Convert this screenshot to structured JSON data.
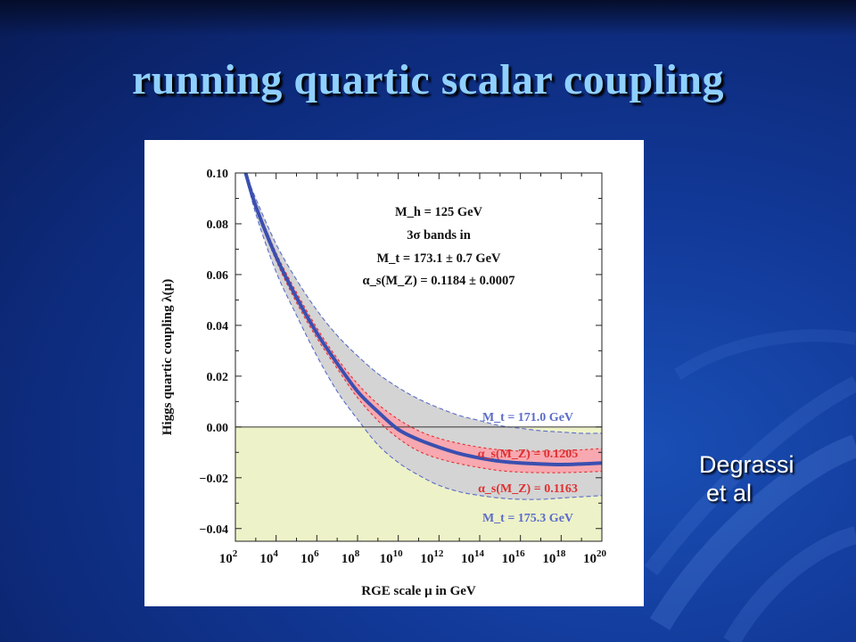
{
  "slide": {
    "title": "running quartic scalar coupling",
    "credit_line1": "Degrassi",
    "credit_line2": "et al"
  },
  "colors": {
    "central_curve": "#3a4fb0",
    "alpha_band": "#f7a8b0",
    "alpha_band_edge": "#e03030",
    "mt_band": "#d4d4d4",
    "mt_band_edge": "#5a6cc8",
    "negative_region": "#eef2c8",
    "title": "#8fd0ff"
  },
  "chart_data": {
    "type": "line",
    "xlabel": "RGE scale μ in GeV",
    "ylabel": "Higgs quartic coupling λ(μ)",
    "x_scale": "log",
    "xlim": [
      100,
      1e+20
    ],
    "ylim": [
      -0.045,
      0.1
    ],
    "x_ticks": [
      {
        "value": 100.0,
        "base": "10",
        "exp": "2"
      },
      {
        "value": 10000.0,
        "base": "10",
        "exp": "4"
      },
      {
        "value": 1000000.0,
        "base": "10",
        "exp": "6"
      },
      {
        "value": 100000000.0,
        "base": "10",
        "exp": "8"
      },
      {
        "value": 10000000000.0,
        "base": "10",
        "exp": "10"
      },
      {
        "value": 1000000000000.0,
        "base": "10",
        "exp": "12"
      },
      {
        "value": 100000000000000.0,
        "base": "10",
        "exp": "14"
      },
      {
        "value": 1e+16,
        "base": "10",
        "exp": "16"
      },
      {
        "value": 1e+18,
        "base": "10",
        "exp": "18"
      },
      {
        "value": 1e+20,
        "base": "10",
        "exp": "20"
      }
    ],
    "y_ticks": [
      {
        "value": 0.1,
        "label": "0.10"
      },
      {
        "value": 0.08,
        "label": "0.08"
      },
      {
        "value": 0.06,
        "label": "0.06"
      },
      {
        "value": 0.04,
        "label": "0.04"
      },
      {
        "value": 0.02,
        "label": "0.02"
      },
      {
        "value": 0.0,
        "label": "0.00"
      },
      {
        "value": -0.02,
        "label": "−0.02"
      },
      {
        "value": -0.04,
        "label": "−0.04"
      }
    ],
    "legend_lines": [
      "M_h = 125 GeV",
      "3σ bands in",
      "M_t = 173.1 ± 0.7 GeV",
      "α_s(M_Z) = 0.1184 ± 0.0007"
    ],
    "annotations": [
      "M_t = 171.0 GeV",
      "α_s(M_Z) = 0.1205",
      "α_s(M_Z) = 0.1163",
      "M_t = 175.3 GeV"
    ],
    "series": [
      {
        "role": "central",
        "x": [
          320.0,
          1000.0,
          10000.0,
          100000.0,
          1000000.0,
          10000000.0,
          100000000.0,
          1000000000.0,
          10000000000.0,
          100000000000.0,
          1000000000000.0,
          10000000000000.0,
          100000000000000.0,
          1000000000000000.0,
          1e+16,
          1e+17,
          1e+18,
          1e+19,
          1e+20
        ],
        "y": [
          0.1,
          0.087,
          0.067,
          0.051,
          0.037,
          0.025,
          0.014,
          0.006,
          -0.001,
          -0.005,
          -0.008,
          -0.0105,
          -0.0122,
          -0.0135,
          -0.0142,
          -0.0146,
          -0.0148,
          -0.0146,
          -0.0142
        ]
      },
      {
        "role": "mt_upper",
        "x": [
          320.0,
          1000.0,
          10000.0,
          100000.0,
          1000000.0,
          10000000.0,
          100000000.0,
          1000000000.0,
          10000000000.0,
          100000000000.0,
          1000000000000.0,
          10000000000000.0,
          100000000000000.0,
          1000000000000000.0,
          1e+16,
          1e+17,
          1e+18,
          1e+19,
          1e+20
        ],
        "y": [
          0.1,
          0.09,
          0.072,
          0.058,
          0.046,
          0.036,
          0.028,
          0.021,
          0.0155,
          0.011,
          0.0075,
          0.0045,
          0.0025,
          0.0005,
          -0.0005,
          -0.0015,
          -0.002,
          -0.0025,
          -0.0025
        ]
      },
      {
        "role": "mt_lower",
        "x": [
          320.0,
          1000.0,
          10000.0,
          100000.0,
          1000000.0,
          10000000.0,
          100000000.0,
          1000000000.0,
          10000000000.0,
          100000000000.0,
          1000000000000.0,
          10000000000000.0,
          100000000000000.0,
          1000000000000000.0,
          1e+16,
          1e+17,
          1e+18,
          1e+19,
          1e+20
        ],
        "y": [
          0.1,
          0.084,
          0.061,
          0.044,
          0.028,
          0.014,
          0.003,
          -0.007,
          -0.014,
          -0.019,
          -0.023,
          -0.0255,
          -0.027,
          -0.028,
          -0.0285,
          -0.0285,
          -0.028,
          -0.0275,
          -0.027
        ]
      },
      {
        "role": "alpha_upper",
        "x": [
          320.0,
          1000.0,
          10000.0,
          100000.0,
          1000000.0,
          10000000.0,
          100000000.0,
          1000000000.0,
          10000000000.0,
          100000000000.0,
          1000000000000.0,
          10000000000000.0,
          100000000000000.0,
          1000000000000000.0,
          1e+16,
          1e+17,
          1e+18,
          1e+19,
          1e+20
        ],
        "y": [
          0.1,
          0.088,
          0.0685,
          0.053,
          0.039,
          0.027,
          0.017,
          0.009,
          0.003,
          -0.0015,
          -0.0045,
          -0.0065,
          -0.008,
          -0.009,
          -0.0095,
          -0.0095,
          -0.0095,
          -0.009,
          -0.0085
        ]
      },
      {
        "role": "alpha_lower",
        "x": [
          320.0,
          1000.0,
          10000.0,
          100000.0,
          1000000.0,
          10000000.0,
          100000000.0,
          1000000000.0,
          10000000000.0,
          100000000000.0,
          1000000000000.0,
          10000000000000.0,
          100000000000000.0,
          1000000000000000.0,
          1e+16,
          1e+17,
          1e+18,
          1e+19,
          1e+20
        ],
        "y": [
          0.1,
          0.086,
          0.0655,
          0.049,
          0.035,
          0.023,
          0.0115,
          0.0025,
          -0.0045,
          -0.0095,
          -0.0125,
          -0.0145,
          -0.016,
          -0.0172,
          -0.0178,
          -0.018,
          -0.018,
          -0.0178,
          -0.0175
        ]
      }
    ]
  }
}
